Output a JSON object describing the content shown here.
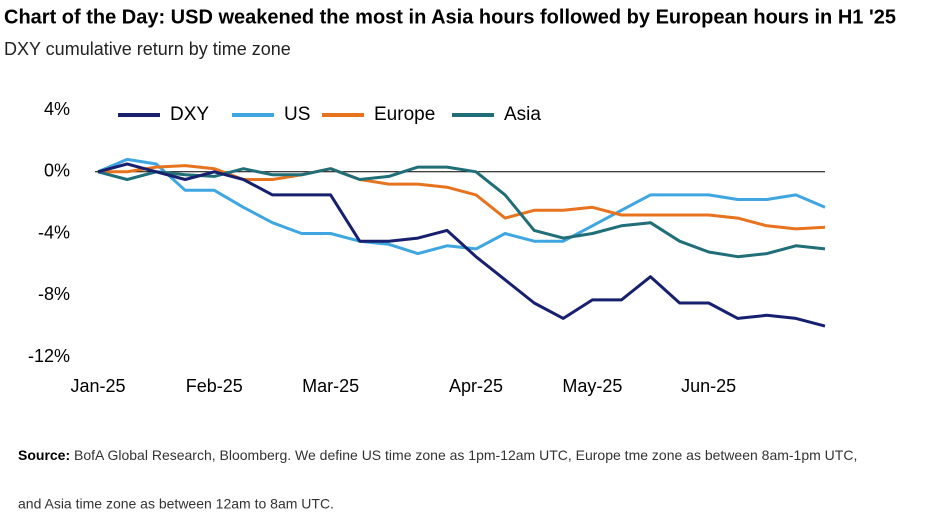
{
  "chart_data": {
    "type": "line",
    "title": "Chart of the Day: USD weakened the most in Asia hours followed by European hours in H1 '25",
    "subtitle": "DXY cumulative return by time zone",
    "categories": [
      "Jan-25",
      null,
      null,
      null,
      "Feb-25",
      null,
      null,
      null,
      "Mar-25",
      null,
      null,
      null,
      null,
      "Apr-25",
      null,
      null,
      null,
      "May-25",
      null,
      null,
      null,
      "Jun-25",
      null,
      null,
      null,
      null
    ],
    "series": [
      {
        "name": "DXY",
        "color": "#16206e",
        "values": [
          0,
          0.5,
          0,
          -0.5,
          0,
          -0.5,
          -1.5,
          -1.5,
          -1.5,
          -4.5,
          -4.5,
          -4.3,
          -3.8,
          -5.5,
          -7,
          -8.5,
          -9.5,
          -8.3,
          -8.3,
          -6.8,
          -8.5,
          -8.5,
          -9.5,
          -9.3,
          -9.5,
          -10
        ]
      },
      {
        "name": "US",
        "color": "#3fa6e2",
        "values": [
          0,
          0.8,
          0.5,
          -1.2,
          -1.2,
          -2.3,
          -3.3,
          -4,
          -4,
          -4.5,
          -4.7,
          -5.3,
          -4.8,
          -5,
          -4,
          -4.5,
          -4.5,
          -3.5,
          -2.5,
          -1.5,
          -1.5,
          -1.5,
          -1.8,
          -1.8,
          -1.5,
          -2.3
        ]
      },
      {
        "name": "Europe",
        "color": "#e8731e",
        "values": [
          0,
          0,
          0.3,
          0.4,
          0.2,
          -0.5,
          -0.5,
          -0.2,
          0.2,
          -0.5,
          -0.8,
          -0.8,
          -1,
          -1.5,
          -3,
          -2.5,
          -2.5,
          -2.3,
          -2.8,
          -2.8,
          -2.8,
          -2.8,
          -3,
          -3.5,
          -3.7,
          -3.6
        ]
      },
      {
        "name": "Asia",
        "color": "#1f6e78",
        "values": [
          0,
          -0.5,
          0,
          -0.2,
          -0.3,
          0.2,
          -0.2,
          -0.2,
          0.2,
          -0.5,
          -0.3,
          0.3,
          0.3,
          0,
          -1.5,
          -3.8,
          -4.3,
          -4,
          -3.5,
          -3.3,
          -4.5,
          -5.2,
          -5.5,
          -5.3,
          -4.8,
          -5
        ]
      }
    ],
    "ylim": [
      -12,
      4
    ],
    "yticks": [
      {
        "value": 4,
        "label": "4%"
      },
      {
        "value": 0,
        "label": "0%"
      },
      {
        "value": -4,
        "label": "-4%"
      },
      {
        "value": -8,
        "label": "-8%"
      },
      {
        "value": -12,
        "label": "-12%"
      }
    ],
    "zero_line": true,
    "source_label": "Source:",
    "source_lines": [
      "BofA Global Research, Bloomberg. We define US time zone as 1pm-12am UTC, Europe tme zone as between 8am-1pm UTC,",
      "and Asia time zone as between 12am to 8am UTC."
    ]
  }
}
